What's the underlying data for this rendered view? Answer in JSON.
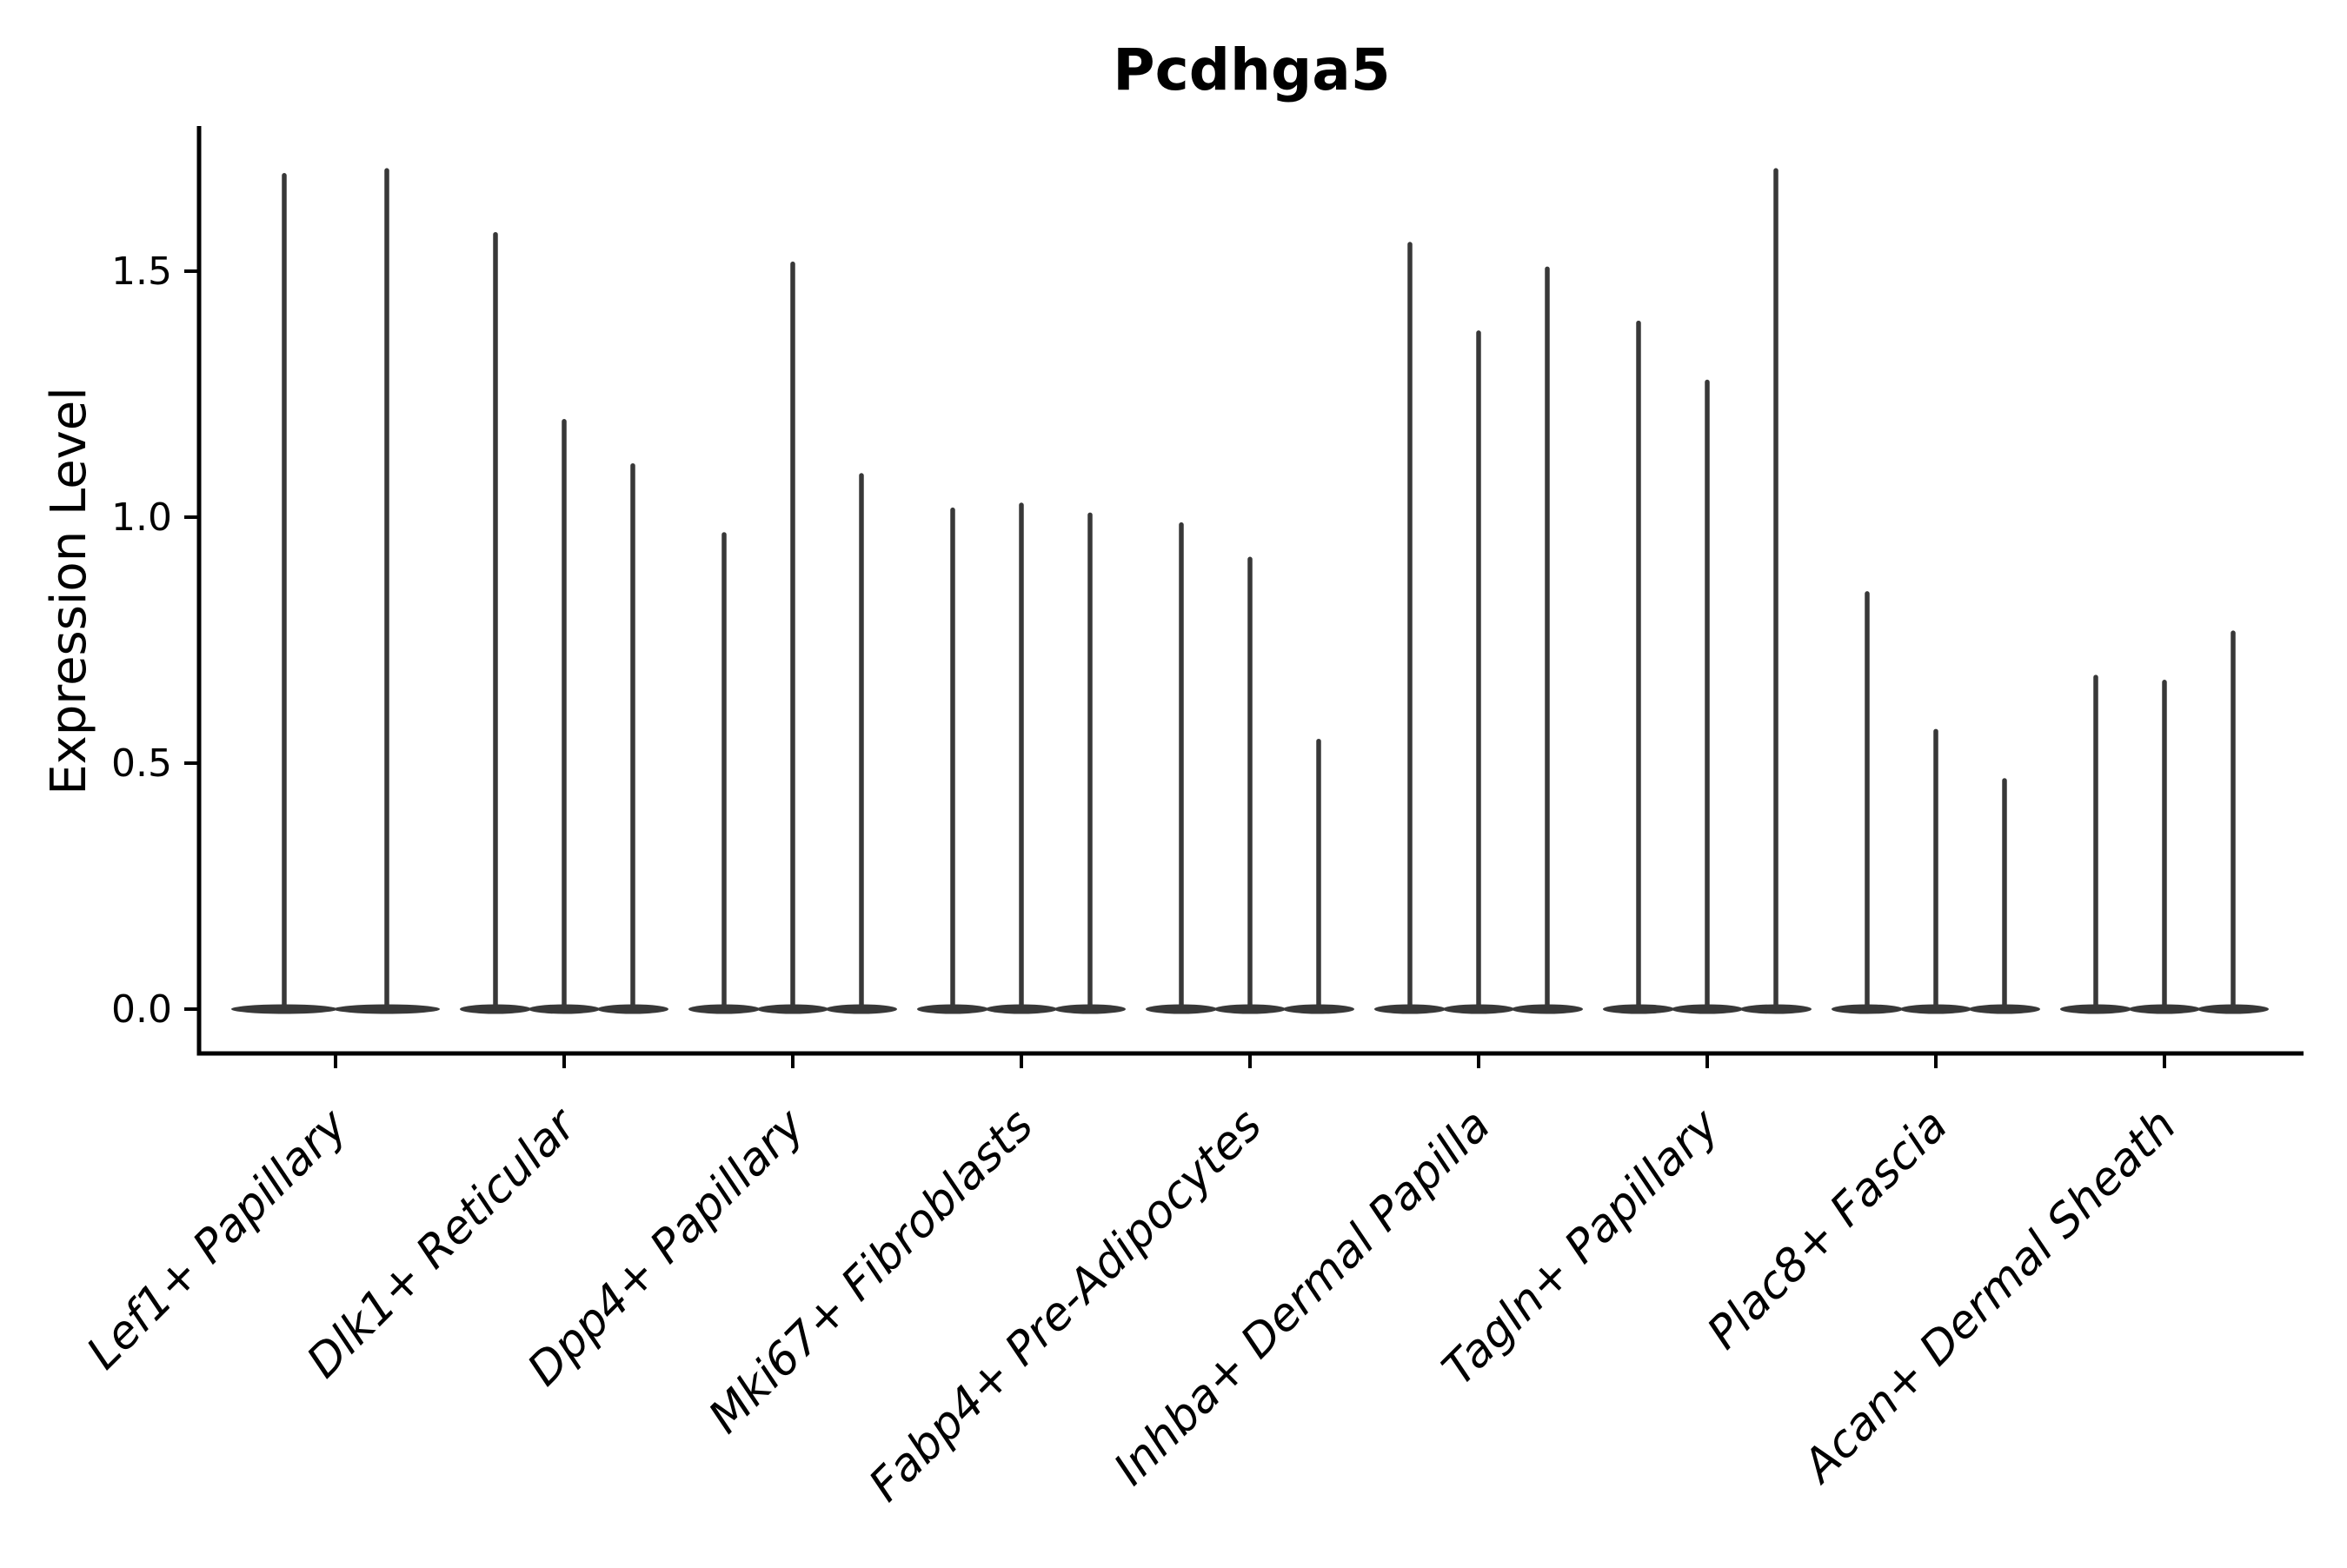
{
  "title": "Pcdhga5",
  "y_axis": {
    "label": "Expression Level",
    "tick_labels": [
      "0.0",
      "0.5",
      "1.0",
      "1.5"
    ],
    "tick_values": [
      0.0,
      0.5,
      1.0,
      1.5
    ]
  },
  "chart_data": {
    "type": "violin",
    "title": "Pcdhga5",
    "xlabel": "",
    "ylabel": "Expression Level",
    "ylim": [
      -0.09,
      1.8
    ],
    "yticks": [
      0.0,
      0.5,
      1.0,
      1.5
    ],
    "ytick_labels": [
      "0.0",
      "0.5",
      "1.0",
      "1.5"
    ],
    "grid": false,
    "legend_position": "none",
    "violin_color": "#383838",
    "axis_color": "#000000",
    "background_color": "#ffffff",
    "x_tick_label_rotation_deg": 45,
    "categories": [
      "Lef1+ Papillary",
      "Dlk1+ Reticular",
      "Dpp4+ Papillary",
      "Mki67+ Fibroblasts",
      "Fabp4+ Pre-Adipocytes",
      "Inhba+ Dermal Papilla",
      "Tagln+ Papillary",
      "Plac8+ Fascia",
      "Acan+ Dermal Sheath"
    ],
    "groups": [
      {
        "category": "Lef1+ Papillary",
        "violin_baseline": 0.0,
        "spike_maxima": [
          1.7,
          1.71
        ]
      },
      {
        "category": "Dlk1+ Reticular",
        "violin_baseline": 0.0,
        "spike_maxima": [
          1.58,
          1.2,
          1.11
        ]
      },
      {
        "category": "Dpp4+ Papillary",
        "violin_baseline": 0.0,
        "spike_maxima": [
          0.97,
          1.52,
          1.09
        ]
      },
      {
        "category": "Mki67+ Fibroblasts",
        "violin_baseline": 0.0,
        "spike_maxima": [
          1.02,
          1.03,
          1.01
        ]
      },
      {
        "category": "Fabp4+ Pre-Adipocytes",
        "violin_baseline": 0.0,
        "spike_maxima": [
          0.99,
          0.92,
          0.55
        ]
      },
      {
        "category": "Inhba+ Dermal Papilla",
        "violin_baseline": 0.0,
        "spike_maxima": [
          1.56,
          1.38,
          1.51
        ]
      },
      {
        "category": "Tagln+ Papillary",
        "violin_baseline": 0.0,
        "spike_maxima": [
          1.4,
          1.28,
          1.71
        ]
      },
      {
        "category": "Plac8+ Fascia",
        "violin_baseline": 0.0,
        "spike_maxima": [
          0.85,
          0.57,
          0.47
        ]
      },
      {
        "category": "Acan+ Dermal Sheath",
        "violin_baseline": 0.0,
        "spike_maxima": [
          0.68,
          0.67,
          0.77
        ]
      }
    ]
  }
}
